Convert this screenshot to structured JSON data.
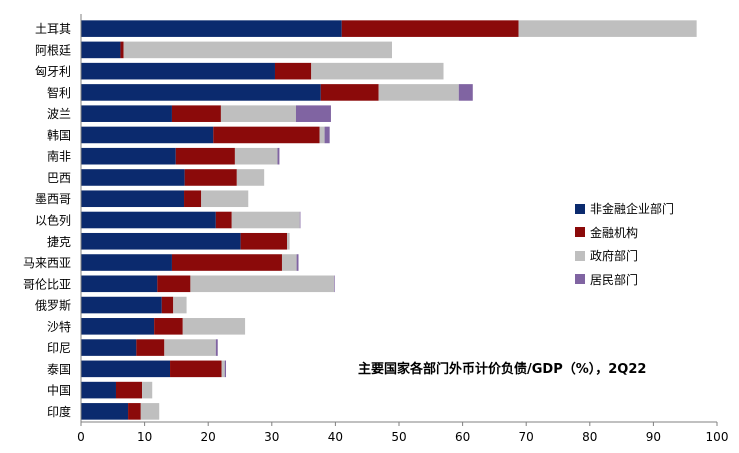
{
  "chart_data": {
    "type": "bar",
    "orientation": "horizontal",
    "stacked": true,
    "title": "",
    "xlabel": "",
    "ylabel": "",
    "xlim": [
      0,
      100
    ],
    "xticks": [
      0,
      10,
      20,
      30,
      40,
      50,
      60,
      70,
      80,
      90,
      100
    ],
    "grid": false,
    "legend_position": "right",
    "annotation": "主要国家各部门外币计价负债/GDP（%），2Q22",
    "categories": [
      "土耳其",
      "阿根廷",
      "匈牙利",
      "智利",
      "波兰",
      "韩国",
      "南非",
      "巴西",
      "墨西哥",
      "以色列",
      "捷克",
      "马来西亚",
      "哥伦比亚",
      "俄罗斯",
      "沙特",
      "印尼",
      "泰国",
      "中国",
      "印度"
    ],
    "series": [
      {
        "name": "非金融企业部门",
        "color": "#0B2A6E",
        "values": [
          41,
          6.2,
          30.5,
          37.7,
          14.3,
          20.8,
          14.9,
          16.3,
          16.2,
          21.2,
          25.1,
          14.3,
          12,
          12.7,
          11.5,
          8.7,
          14,
          5.5,
          7.4
        ]
      },
      {
        "name": "金融机构",
        "color": "#8B0A0A",
        "values": [
          27.8,
          0.5,
          5.7,
          9.1,
          7.7,
          16.7,
          9.3,
          8.2,
          2.7,
          2.5,
          7.3,
          17.3,
          5.2,
          1.8,
          4.5,
          4.4,
          8.1,
          4.1,
          2
        ]
      },
      {
        "name": "政府部门",
        "color": "#BFBFBF",
        "values": [
          28,
          42.2,
          20.8,
          12.6,
          11.8,
          0.8,
          6.7,
          4.3,
          7.4,
          10.7,
          0.4,
          2.3,
          22.6,
          2.1,
          9.8,
          8.1,
          0.5,
          1.6,
          2.9
        ]
      },
      {
        "name": "居民部门",
        "color": "#8064A2",
        "values": [
          0,
          0,
          0,
          2.2,
          5.5,
          0.8,
          0.3,
          0,
          0,
          0.1,
          0,
          0.3,
          0.1,
          0,
          0,
          0.3,
          0.2,
          0,
          0
        ]
      }
    ]
  }
}
